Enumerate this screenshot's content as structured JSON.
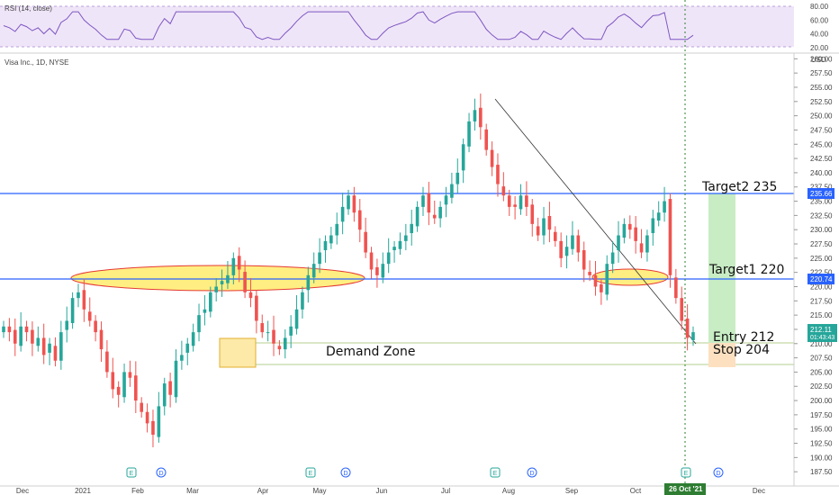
{
  "rsi": {
    "label": "RSI (14, close)",
    "ticks": [
      "80.00",
      "60.00",
      "40.00",
      "20.00"
    ],
    "tick_values": [
      80,
      60,
      40,
      20
    ],
    "band": [
      30,
      70
    ]
  },
  "main": {
    "label": "Visa Inc., 1D, NYSE",
    "currency": "USD",
    "price_ticks": [
      "260.00",
      "257.50",
      "255.00",
      "252.50",
      "250.00",
      "247.50",
      "245.00",
      "242.50",
      "240.00",
      "237.50",
      "235.00",
      "232.50",
      "230.00",
      "227.50",
      "225.00",
      "222.50",
      "220.00",
      "217.50",
      "215.00",
      "212.50",
      "210.00",
      "207.50",
      "205.00",
      "202.50",
      "200.00",
      "197.50",
      "195.00",
      "192.50",
      "190.00",
      "187.50"
    ],
    "price_tick_values": [
      260,
      257.5,
      255,
      252.5,
      250,
      247.5,
      245,
      242.5,
      240,
      237.5,
      235,
      232.5,
      230,
      227.5,
      225,
      222.5,
      220,
      217.5,
      215,
      212.5,
      210,
      207.5,
      205,
      202.5,
      200,
      197.5,
      195,
      192.5,
      190,
      187.5
    ],
    "time_labels": [
      "Dec",
      "2021",
      "Feb",
      "Mar",
      "Apr",
      "May",
      "Jun",
      "Jul",
      "Aug",
      "Sep",
      "Oct",
      "Dec"
    ],
    "current_date": "26 Oct '21",
    "current_price": "212.11",
    "countdown": "01:43:43",
    "tags": {
      "level_top": "235.66",
      "level_mid": "220.74"
    },
    "colors": {
      "up": "#26a69a",
      "down": "#ef5350",
      "line": "#2962ff",
      "rsi": "#7e57c2"
    }
  },
  "chart_data": {
    "type": "candlestick",
    "ylim": [
      185,
      261
    ],
    "horizontal_lines": [
      235.66,
      220.74
    ],
    "current_date": "2021-10-26",
    "closes": [
      213,
      212,
      210,
      213,
      212,
      210,
      211,
      208,
      210,
      207,
      212,
      214,
      218,
      219,
      216,
      214,
      212,
      209,
      205,
      202,
      201,
      205,
      204,
      200,
      198,
      196,
      194,
      199,
      203,
      201,
      207,
      208,
      210,
      212,
      215,
      216,
      219,
      220,
      221,
      222,
      225,
      223,
      219,
      218,
      214,
      212,
      212,
      210,
      209,
      211,
      213,
      216,
      219,
      222,
      224,
      226,
      228,
      229,
      231,
      234,
      236,
      233,
      230,
      226,
      223,
      222,
      224,
      226,
      227,
      228,
      229,
      231,
      234,
      236,
      233,
      232,
      234,
      236,
      238,
      240,
      245,
      249,
      251,
      248,
      244,
      241,
      238,
      236,
      234,
      234,
      236,
      234,
      231,
      229,
      232,
      230,
      228,
      225,
      227,
      229,
      226,
      223,
      222,
      220,
      219,
      224,
      226,
      229,
      231,
      230,
      228,
      226,
      229,
      232,
      233,
      235,
      222,
      218,
      214,
      211,
      212
    ]
  },
  "annotations": {
    "target2": "Target2 235",
    "target1": "Target1 220",
    "entry": "Entry 212",
    "stop": "Stop 204",
    "demand_zone": "Demand Zone"
  },
  "events": {
    "earnings": "E",
    "dividend": "D"
  }
}
